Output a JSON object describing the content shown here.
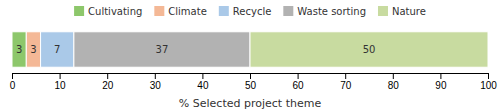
{
  "chart_data": {
    "type": "bar",
    "orientation": "horizontal",
    "stacked": true,
    "categories": [
      null
    ],
    "series": [
      {
        "name": "Cultivating",
        "color": "#8dc76b",
        "values": [
          3
        ]
      },
      {
        "name": "Climate",
        "color": "#f4b896",
        "values": [
          3
        ]
      },
      {
        "name": "Recycle",
        "color": "#aac9e8",
        "values": [
          7
        ]
      },
      {
        "name": "Waste sorting",
        "color": "#b2b2b2",
        "values": [
          37
        ]
      },
      {
        "name": "Nature",
        "color": "#c8dba0",
        "values": [
          50
        ]
      }
    ],
    "xlabel": "% Selected project theme",
    "xlim": [
      0,
      100
    ],
    "xticks": [
      0,
      10,
      20,
      30,
      40,
      50,
      60,
      70,
      80,
      90,
      100
    ],
    "data_labels": true,
    "legend": "top",
    "grid": false
  }
}
